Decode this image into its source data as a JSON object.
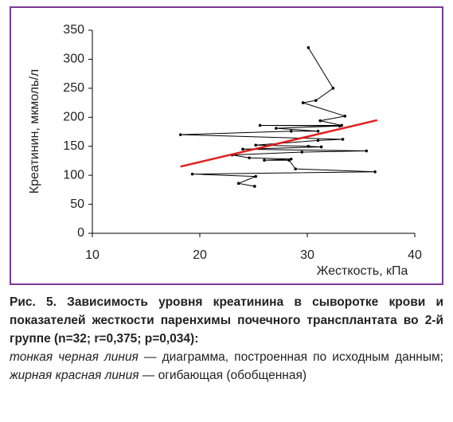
{
  "chart_data": {
    "type": "line",
    "x_label": "Жесткость, кПа",
    "y_label": "Креатинин, мкмоль/л",
    "xlim": [
      10,
      40
    ],
    "xticks": [
      10,
      20,
      30,
      40
    ],
    "ylim": [
      0,
      350
    ],
    "yticks": [
      0,
      50,
      100,
      150,
      200,
      250,
      300,
      350
    ],
    "grid": false,
    "series": [
      {
        "color": "#000000",
        "marker": true,
        "x": [
          30.1,
          32.4,
          30.8,
          29.6,
          33.5,
          31.2,
          33.2,
          25.6,
          33.0,
          27.1,
          31.0,
          28.5,
          18.2,
          33.3,
          31.0,
          25.2,
          30.1,
          31.3,
          24.0,
          35.5,
          29.5,
          23.0,
          24.6,
          28.5,
          26.0,
          28.3,
          28.9,
          36.3,
          19.3,
          25.2,
          23.6,
          25.1
        ],
        "values": [
          320,
          250,
          229,
          225,
          202,
          194,
          186,
          186,
          185,
          181,
          176,
          176,
          170,
          162,
          160,
          152,
          150,
          149,
          145,
          142,
          140,
          135,
          130,
          128,
          126,
          126,
          111,
          106,
          102,
          98,
          86,
          81
        ]
      },
      {
        "color": "#e02020",
        "marker": false,
        "x": [
          18.2,
          36.5
        ],
        "values": [
          115,
          195
        ]
      }
    ]
  },
  "caption": {
    "title": "Рис. 5. Зависимость уровня креатинина в сыворотке крови и показателей жесткости паренхимы почечного трансплантата во 2-й группе (n=32; r=0,375; p=0,034):",
    "italic_1": "тонкая черная линия",
    "text_1": "— диаграмма, построенная по исходным данным;",
    "italic_2": "жирная красная линия",
    "text_2": "— огибающая (обобщенная)"
  }
}
